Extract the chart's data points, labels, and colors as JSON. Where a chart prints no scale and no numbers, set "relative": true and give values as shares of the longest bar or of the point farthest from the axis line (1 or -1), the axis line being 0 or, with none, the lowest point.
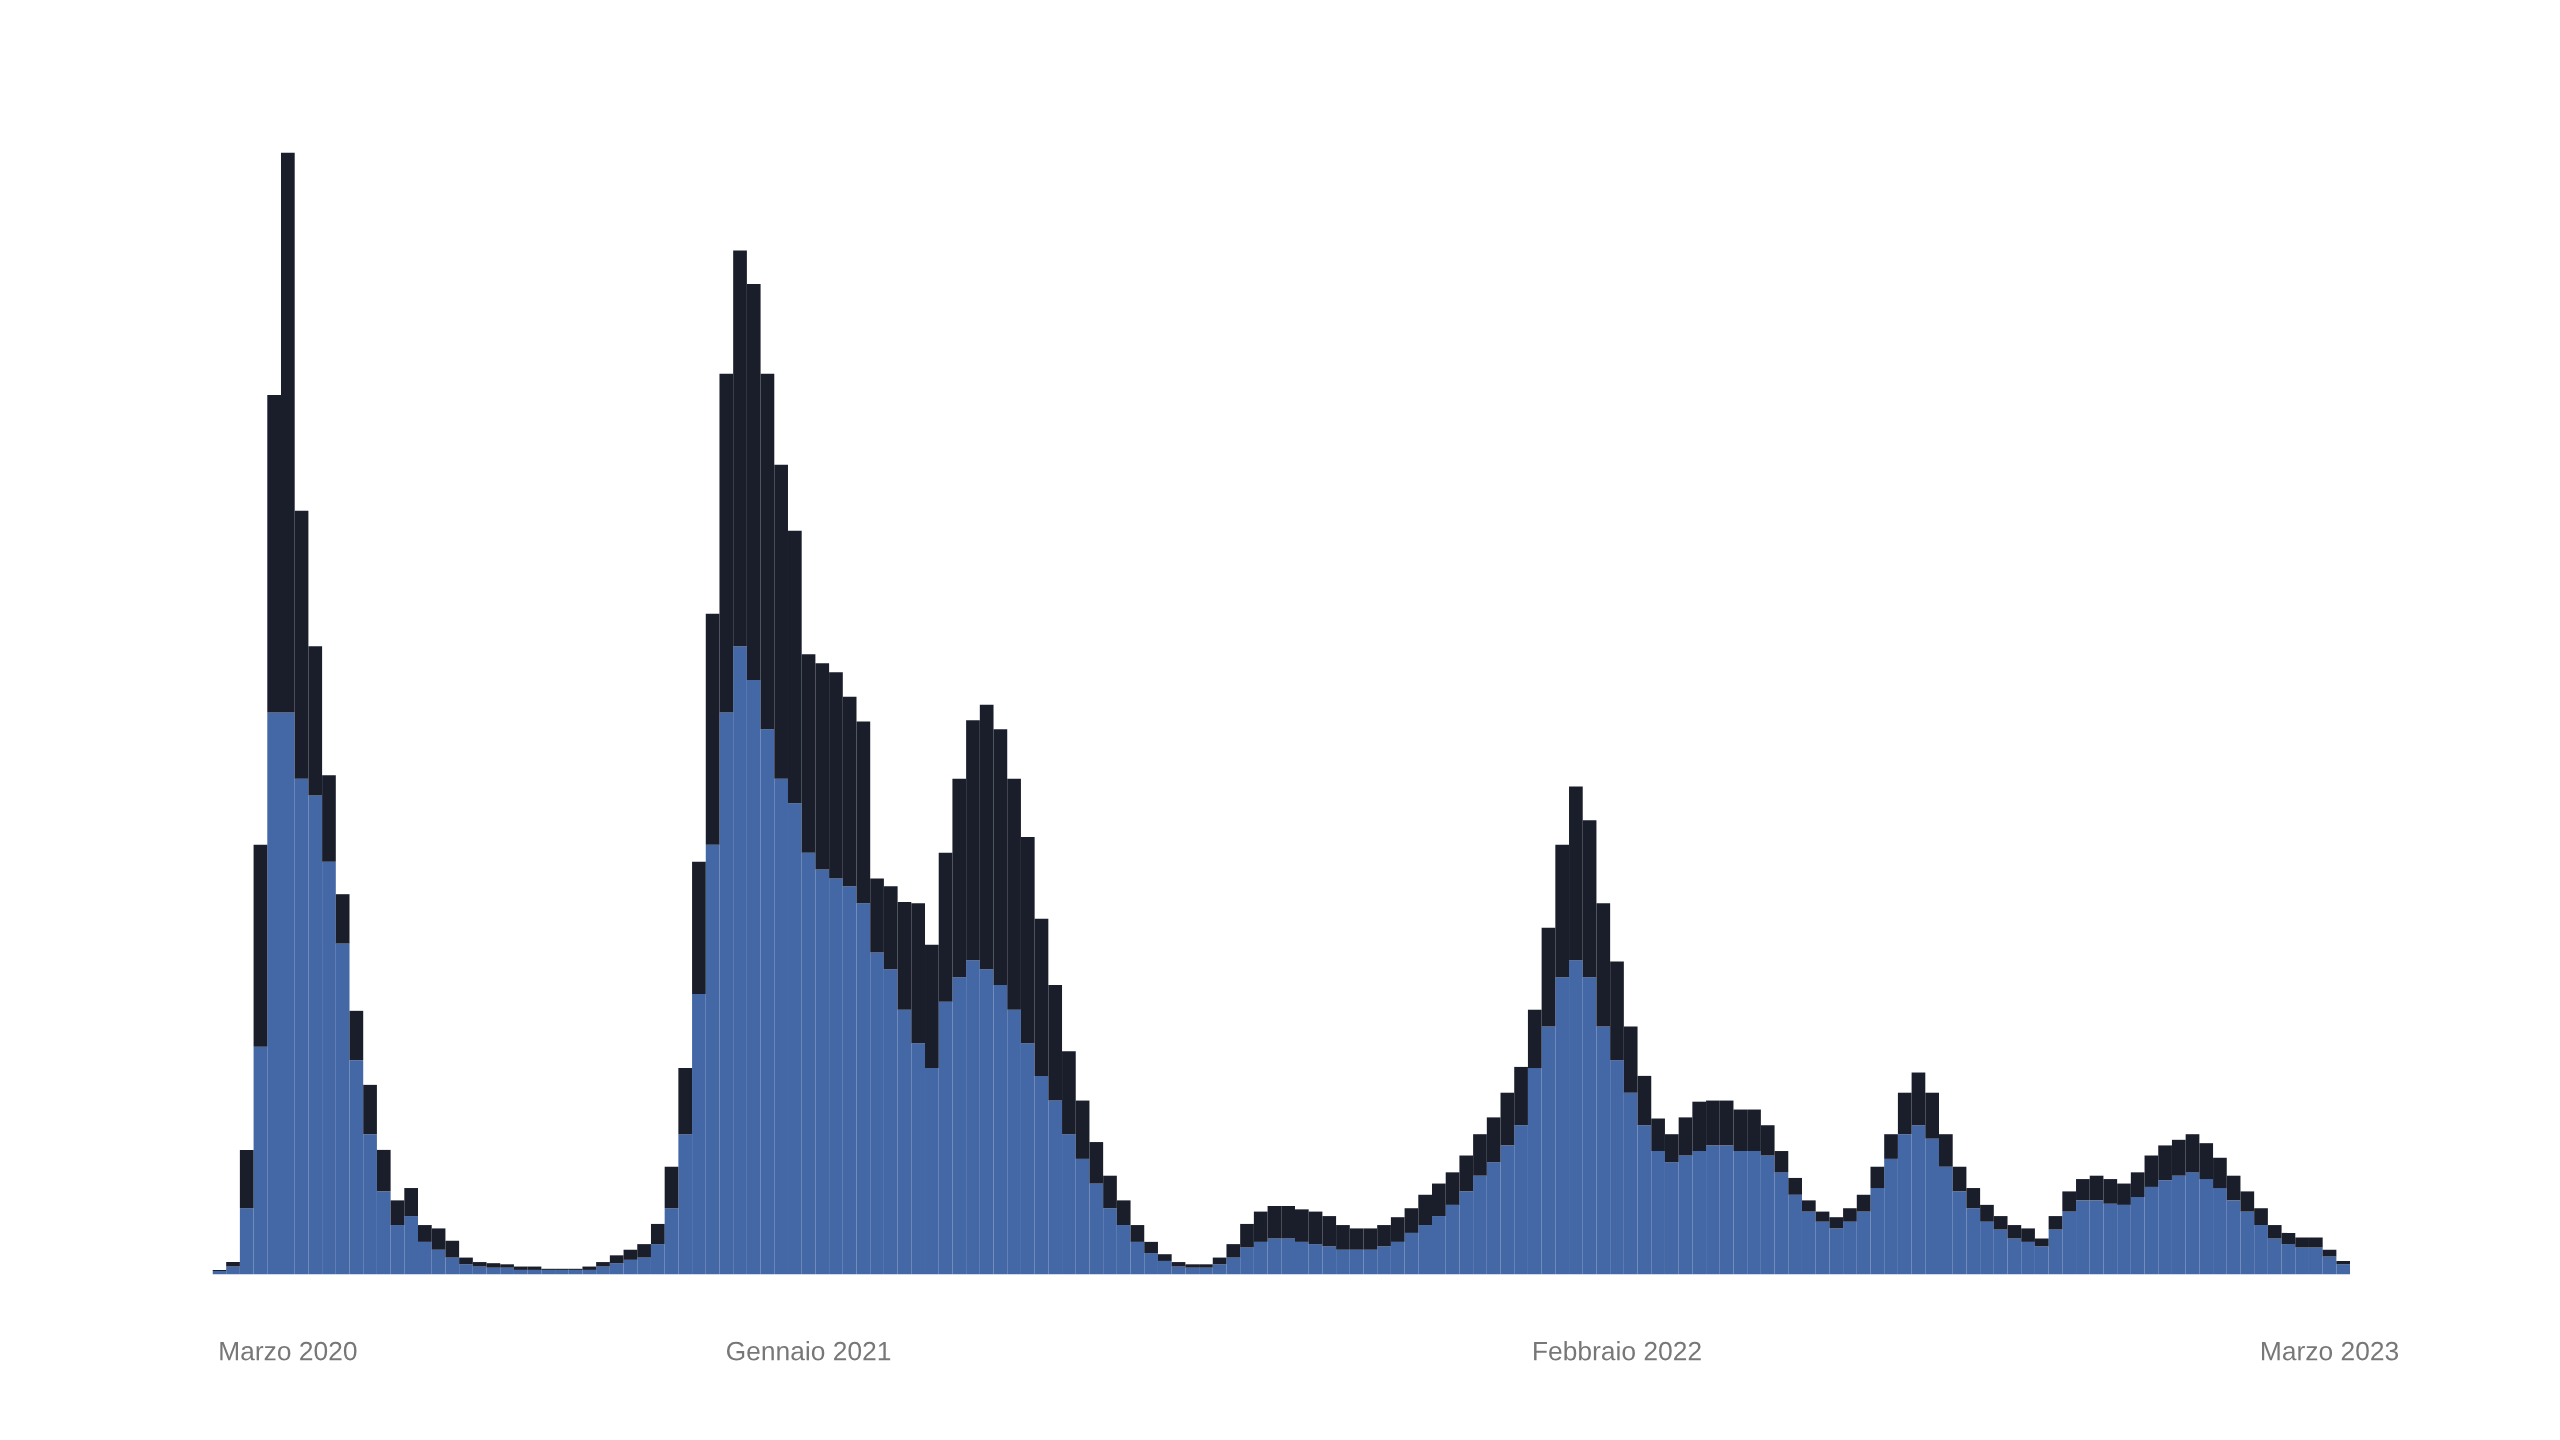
{
  "chart_data": {
    "type": "bar",
    "stacked": true,
    "relative": true,
    "grid": false,
    "categories": [
      null,
      null,
      null,
      null,
      null,
      "Marzo 2020",
      null,
      null,
      null,
      null,
      null,
      null,
      null,
      null,
      null,
      null,
      null,
      null,
      null,
      null,
      null,
      null,
      null,
      null,
      null,
      null,
      null,
      null,
      null,
      null,
      null,
      null,
      null,
      null,
      null,
      null,
      null,
      null,
      null,
      null,
      null,
      null,
      null,
      "Gennaio 2021",
      null,
      null,
      null,
      null,
      null,
      null,
      null,
      null,
      null,
      null,
      null,
      null,
      null,
      null,
      null,
      null,
      null,
      null,
      null,
      null,
      null,
      null,
      null,
      null,
      null,
      null,
      null,
      null,
      null,
      null,
      null,
      null,
      null,
      null,
      null,
      null,
      null,
      null,
      null,
      null,
      null,
      null,
      null,
      null,
      null,
      null,
      null,
      null,
      null,
      null,
      null,
      null,
      null,
      null,
      null,
      null,
      null,
      null,
      "Febbraio 2022",
      null,
      null,
      null,
      null,
      null,
      null,
      null,
      null,
      null,
      null,
      null,
      null,
      null,
      null,
      null,
      null,
      null,
      null,
      null,
      null,
      null,
      null,
      null,
      null,
      null,
      null,
      null,
      null,
      null,
      null,
      null,
      null,
      null,
      null,
      null,
      null,
      null,
      null,
      null,
      null,
      null,
      null,
      null,
      null,
      null,
      null,
      null,
      null,
      null,
      null,
      null,
      "Marzo 2023",
      null
    ],
    "series": [
      {
        "color": "#4467a6",
        "values": [
          0.003,
          0.007,
          0.059,
          0.203,
          0.501,
          0.501,
          0.442,
          0.427,
          0.368,
          0.295,
          0.191,
          0.125,
          0.074,
          0.044,
          0.052,
          0.029,
          0.022,
          0.015,
          0.009,
          0.007,
          0.006,
          0.006,
          0.004,
          0.004,
          0.004,
          0.004,
          0.004,
          0.004,
          0.007,
          0.01,
          0.013,
          0.015,
          0.027,
          0.059,
          0.125,
          0.25,
          0.383,
          0.501,
          0.56,
          0.53,
          0.486,
          0.442,
          0.42,
          0.376,
          0.361,
          0.353,
          0.346,
          0.331,
          0.287,
          0.272,
          0.236,
          0.206,
          0.184,
          0.243,
          0.265,
          0.28,
          0.272,
          0.258,
          0.236,
          0.206,
          0.177,
          0.155,
          0.125,
          0.103,
          0.081,
          0.059,
          0.044,
          0.029,
          0.019,
          0.012,
          0.007,
          0.006,
          0.006,
          0.009,
          0.015,
          0.024,
          0.029,
          0.032,
          0.032,
          0.029,
          0.027,
          0.025,
          0.022,
          0.022,
          0.022,
          0.025,
          0.029,
          0.037,
          0.044,
          0.052,
          0.062,
          0.074,
          0.088,
          0.1,
          0.115,
          0.133,
          0.184,
          0.221,
          0.265,
          0.28,
          0.265,
          0.221,
          0.191,
          0.162,
          0.133,
          0.11,
          0.1,
          0.106,
          0.11,
          0.115,
          0.115,
          0.11,
          0.11,
          0.106,
          0.091,
          0.071,
          0.056,
          0.047,
          0.041,
          0.047,
          0.056,
          0.077,
          0.103,
          0.125,
          0.133,
          0.121,
          0.096,
          0.074,
          0.059,
          0.047,
          0.04,
          0.032,
          0.029,
          0.025,
          0.04,
          0.056,
          0.066,
          0.066,
          0.063,
          0.062,
          0.069,
          0.078,
          0.084,
          0.088,
          0.091,
          0.085,
          0.077,
          0.066,
          0.056,
          0.044,
          0.032,
          0.027,
          0.024,
          0.024,
          0.016,
          0.009
        ]
      },
      {
        "color": "#1a1e2b",
        "values": [
          0.001,
          0.004,
          0.052,
          0.18,
          0.283,
          0.499,
          0.239,
          0.133,
          0.077,
          0.044,
          0.044,
          0.044,
          0.037,
          0.022,
          0.025,
          0.015,
          0.019,
          0.015,
          0.006,
          0.004,
          0.004,
          0.003,
          0.003,
          0.003,
          0.001,
          0.001,
          0.001,
          0.003,
          0.004,
          0.007,
          0.009,
          0.012,
          0.018,
          0.037,
          0.059,
          0.118,
          0.206,
          0.302,
          0.353,
          0.353,
          0.317,
          0.28,
          0.243,
          0.177,
          0.184,
          0.184,
          0.169,
          0.162,
          0.066,
          0.074,
          0.096,
          0.125,
          0.11,
          0.133,
          0.177,
          0.214,
          0.236,
          0.228,
          0.206,
          0.184,
          0.14,
          0.103,
          0.074,
          0.052,
          0.037,
          0.029,
          0.022,
          0.015,
          0.01,
          0.006,
          0.004,
          0.003,
          0.003,
          0.006,
          0.012,
          0.021,
          0.027,
          0.029,
          0.029,
          0.029,
          0.029,
          0.027,
          0.022,
          0.019,
          0.019,
          0.019,
          0.022,
          0.022,
          0.027,
          0.029,
          0.029,
          0.032,
          0.037,
          0.04,
          0.047,
          0.052,
          0.052,
          0.088,
          0.118,
          0.155,
          0.14,
          0.11,
          0.088,
          0.059,
          0.044,
          0.029,
          0.025,
          0.034,
          0.044,
          0.04,
          0.04,
          0.037,
          0.037,
          0.027,
          0.019,
          0.015,
          0.01,
          0.009,
          0.01,
          0.012,
          0.015,
          0.019,
          0.022,
          0.037,
          0.047,
          0.041,
          0.029,
          0.022,
          0.018,
          0.015,
          0.012,
          0.012,
          0.012,
          0.007,
          0.012,
          0.018,
          0.019,
          0.022,
          0.022,
          0.019,
          0.022,
          0.028,
          0.031,
          0.032,
          0.034,
          0.032,
          0.027,
          0.022,
          0.018,
          0.015,
          0.012,
          0.01,
          0.009,
          0.009,
          0.006,
          0.003
        ]
      }
    ]
  }
}
